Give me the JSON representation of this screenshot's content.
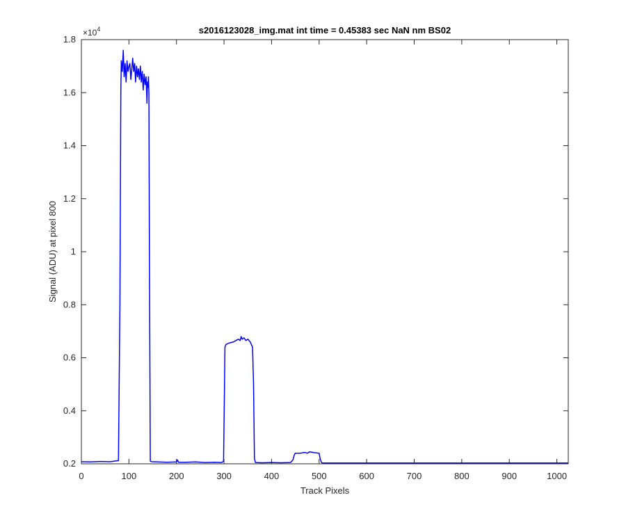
{
  "colors": {
    "line": "#0000ff",
    "axis": "#262626",
    "background": "#ffffff"
  },
  "chart_data": {
    "type": "line",
    "title": "s2016123028_img.mat int time = 0.45383 sec  NaN nm BS02",
    "xlabel": "Track Pixels",
    "ylabel": "Signal (ADU) at pixel 800",
    "y_multiplier": "×10",
    "y_multiplier_exp": "4",
    "xlim": [
      0,
      1024
    ],
    "ylim": [
      0.2,
      1.8
    ],
    "y_scale_factor": 10000,
    "grid": false,
    "legend": "none",
    "xticks": [
      0,
      100,
      200,
      300,
      400,
      500,
      600,
      700,
      800,
      900,
      1000
    ],
    "xtick_labels": [
      "0",
      "100",
      "200",
      "300",
      "400",
      "500",
      "600",
      "700",
      "800",
      "900",
      "1000"
    ],
    "yticks": [
      0.2,
      0.4,
      0.6,
      0.8,
      1.0,
      1.2,
      1.4,
      1.6,
      1.8
    ],
    "ytick_labels": [
      "0.2",
      "0.4",
      "0.6",
      "0.8",
      "1",
      "1.2",
      "1.4",
      "1.6",
      "1.8"
    ],
    "series": [
      {
        "x": [
          0,
          20,
          40,
          60,
          78,
          81,
          83,
          84,
          86,
          88,
          90,
          92,
          94,
          96,
          98,
          100,
          102,
          104,
          106,
          108,
          110,
          112,
          114,
          116,
          118,
          120,
          122,
          124,
          126,
          128,
          130,
          132,
          134,
          136,
          138,
          139,
          140,
          141,
          142,
          143,
          145,
          148,
          160,
          180,
          200,
          202,
          204,
          220,
          240,
          260,
          280,
          295,
          299,
          301,
          302,
          304,
          310,
          320,
          325,
          330,
          334,
          336,
          338,
          342,
          346,
          350,
          355,
          360,
          362,
          364,
          366,
          380,
          400,
          420,
          440,
          445,
          448,
          450,
          460,
          470,
          475,
          480,
          490,
          500,
          502,
          505,
          507,
          520,
          550,
          600,
          650,
          700,
          750,
          800,
          850,
          900,
          950,
          1000,
          1024
        ],
        "y": [
          0.208,
          0.207,
          0.209,
          0.208,
          0.212,
          0.8,
          1.6,
          1.72,
          1.68,
          1.76,
          1.66,
          1.71,
          1.64,
          1.72,
          1.68,
          1.7,
          1.71,
          1.65,
          1.69,
          1.73,
          1.68,
          1.71,
          1.64,
          1.7,
          1.66,
          1.69,
          1.65,
          1.7,
          1.64,
          1.68,
          1.61,
          1.67,
          1.63,
          1.66,
          1.56,
          1.64,
          1.62,
          1.66,
          1.6,
          1.0,
          0.21,
          0.208,
          0.207,
          0.206,
          0.207,
          0.215,
          0.206,
          0.206,
          0.207,
          0.205,
          0.206,
          0.205,
          0.21,
          0.5,
          0.64,
          0.65,
          0.655,
          0.66,
          0.665,
          0.67,
          0.665,
          0.68,
          0.67,
          0.675,
          0.665,
          0.67,
          0.66,
          0.64,
          0.5,
          0.22,
          0.205,
          0.204,
          0.205,
          0.204,
          0.205,
          0.215,
          0.235,
          0.24,
          0.24,
          0.243,
          0.24,
          0.245,
          0.242,
          0.24,
          0.22,
          0.205,
          0.203,
          0.203,
          0.203,
          0.203,
          0.203,
          0.203,
          0.203,
          0.203,
          0.203,
          0.203,
          0.203,
          0.203,
          0.203
        ]
      }
    ]
  }
}
